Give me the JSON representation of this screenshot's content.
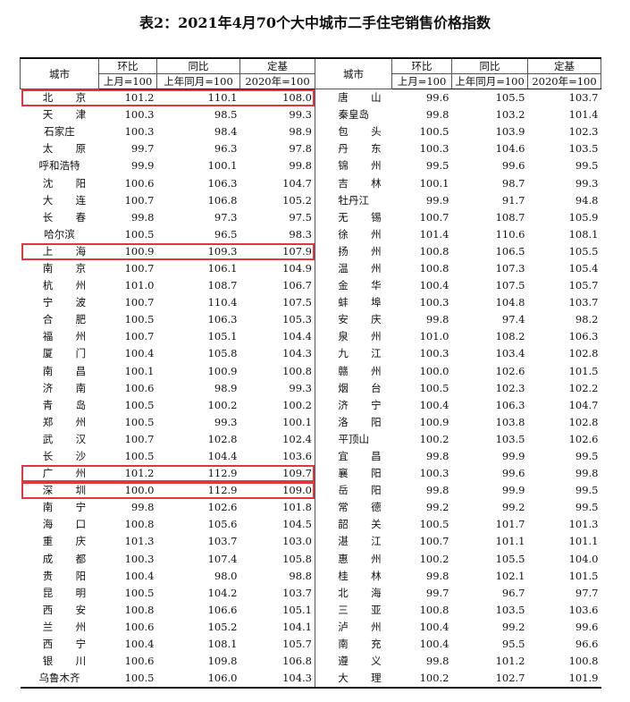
{
  "header": {
    "title": "表2：2021年4月70个大中城市二手住宅销售价格指数"
  },
  "table": {
    "columns": [
      "城市",
      "环比",
      "同比",
      "定基"
    ],
    "bases": [
      "上月=100",
      "上年同月=100",
      "2020年=100"
    ],
    "left": {
      "highlighted_rows": [
        0,
        9,
        22,
        23
      ],
      "rows": [
        [
          "北京",
          "101.2",
          "110.1",
          "108.0"
        ],
        [
          "天津",
          "100.3",
          "98.5",
          "99.3"
        ],
        [
          "石家庄",
          "100.3",
          "98.4",
          "98.9"
        ],
        [
          "太原",
          "99.7",
          "96.3",
          "97.8"
        ],
        [
          "呼和浩特",
          "99.9",
          "100.1",
          "99.8"
        ],
        [
          "沈阳",
          "100.6",
          "106.3",
          "104.7"
        ],
        [
          "大连",
          "100.7",
          "106.8",
          "105.2"
        ],
        [
          "长春",
          "99.8",
          "97.3",
          "97.5"
        ],
        [
          "哈尔滨",
          "100.5",
          "96.5",
          "98.3"
        ],
        [
          "上海",
          "100.9",
          "109.3",
          "107.9"
        ],
        [
          "南京",
          "100.7",
          "106.1",
          "104.9"
        ],
        [
          "杭州",
          "101.0",
          "108.7",
          "106.7"
        ],
        [
          "宁波",
          "100.7",
          "110.4",
          "107.5"
        ],
        [
          "合肥",
          "100.5",
          "106.3",
          "105.3"
        ],
        [
          "福州",
          "100.7",
          "105.1",
          "104.4"
        ],
        [
          "厦门",
          "100.4",
          "105.8",
          "104.3"
        ],
        [
          "南昌",
          "100.1",
          "100.9",
          "100.8"
        ],
        [
          "济南",
          "100.6",
          "98.9",
          "99.3"
        ],
        [
          "青岛",
          "100.5",
          "100.2",
          "100.2"
        ],
        [
          "郑州",
          "100.5",
          "99.3",
          "100.1"
        ],
        [
          "武汉",
          "100.7",
          "102.8",
          "102.4"
        ],
        [
          "长沙",
          "100.5",
          "104.4",
          "103.6"
        ],
        [
          "广州",
          "101.2",
          "112.9",
          "109.7"
        ],
        [
          "深圳",
          "100.0",
          "112.9",
          "109.0"
        ],
        [
          "南宁",
          "99.8",
          "102.6",
          "101.8"
        ],
        [
          "海口",
          "100.8",
          "105.6",
          "104.5"
        ],
        [
          "重庆",
          "101.3",
          "103.7",
          "103.0"
        ],
        [
          "成都",
          "100.3",
          "107.4",
          "105.8"
        ],
        [
          "贵阳",
          "100.4",
          "98.0",
          "98.8"
        ],
        [
          "昆明",
          "100.5",
          "104.2",
          "103.7"
        ],
        [
          "西安",
          "100.8",
          "106.6",
          "105.1"
        ],
        [
          "兰州",
          "100.6",
          "105.2",
          "104.1"
        ],
        [
          "西宁",
          "100.4",
          "108.1",
          "105.7"
        ],
        [
          "银川",
          "100.6",
          "109.8",
          "106.8"
        ],
        [
          "乌鲁木齐",
          "100.5",
          "106.0",
          "104.3"
        ]
      ]
    },
    "right": {
      "rows": [
        [
          "唐山",
          "99.6",
          "105.5",
          "103.7"
        ],
        [
          "秦皇岛",
          "99.8",
          "103.2",
          "101.4"
        ],
        [
          "包头",
          "100.5",
          "103.9",
          "102.3"
        ],
        [
          "丹东",
          "100.3",
          "104.6",
          "103.5"
        ],
        [
          "锦州",
          "99.5",
          "99.6",
          "99.5"
        ],
        [
          "吉林",
          "100.1",
          "98.7",
          "99.3"
        ],
        [
          "牡丹江",
          "99.9",
          "91.7",
          "94.8"
        ],
        [
          "无锡",
          "100.7",
          "108.7",
          "105.9"
        ],
        [
          "徐州",
          "101.4",
          "110.6",
          "108.1"
        ],
        [
          "扬州",
          "100.8",
          "106.5",
          "105.5"
        ],
        [
          "温州",
          "100.8",
          "107.3",
          "105.4"
        ],
        [
          "金华",
          "100.4",
          "107.5",
          "105.7"
        ],
        [
          "蚌埠",
          "100.3",
          "104.8",
          "103.7"
        ],
        [
          "安庆",
          "99.8",
          "97.4",
          "98.2"
        ],
        [
          "泉州",
          "101.0",
          "108.2",
          "106.3"
        ],
        [
          "九江",
          "100.3",
          "103.4",
          "102.8"
        ],
        [
          "赣州",
          "100.0",
          "102.6",
          "101.5"
        ],
        [
          "烟台",
          "100.5",
          "102.3",
          "102.2"
        ],
        [
          "济宁",
          "100.4",
          "106.3",
          "104.7"
        ],
        [
          "洛阳",
          "100.9",
          "103.8",
          "102.8"
        ],
        [
          "平顶山",
          "100.2",
          "103.5",
          "102.6"
        ],
        [
          "宜昌",
          "99.8",
          "99.9",
          "99.5"
        ],
        [
          "襄阳",
          "100.3",
          "99.6",
          "99.8"
        ],
        [
          "岳阳",
          "99.8",
          "99.9",
          "99.5"
        ],
        [
          "常德",
          "99.2",
          "99.2",
          "99.5"
        ],
        [
          "韶关",
          "100.5",
          "101.7",
          "101.3"
        ],
        [
          "湛江",
          "100.7",
          "101.1",
          "101.1"
        ],
        [
          "惠州",
          "100.2",
          "105.5",
          "104.0"
        ],
        [
          "桂林",
          "99.8",
          "102.1",
          "101.5"
        ],
        [
          "北海",
          "99.7",
          "96.7",
          "97.7"
        ],
        [
          "三亚",
          "100.8",
          "103.5",
          "103.6"
        ],
        [
          "泸州",
          "100.4",
          "99.2",
          "99.6"
        ],
        [
          "南充",
          "100.4",
          "95.5",
          "96.6"
        ],
        [
          "遵义",
          "99.8",
          "101.2",
          "100.8"
        ],
        [
          "大理",
          "100.2",
          "102.7",
          "101.9"
        ]
      ]
    }
  }
}
